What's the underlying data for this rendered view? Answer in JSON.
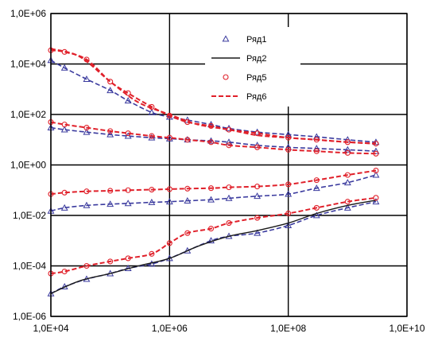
{
  "chart_data": {
    "type": "line",
    "scale": "log-log",
    "xlim": [
      10000,
      10000000000
    ],
    "ylim": [
      1e-06,
      1000000
    ],
    "x_ticks": [
      {
        "value": 10000,
        "label": "1,0E+04"
      },
      {
        "value": 1000000,
        "label": "1,0E+06"
      },
      {
        "value": 100000000,
        "label": "1,0E+08"
      },
      {
        "value": 10000000000,
        "label": "1,0E+10"
      }
    ],
    "y_ticks": [
      {
        "value": 1000000,
        "label": "1,0E+06"
      },
      {
        "value": 10000,
        "label": "1,0E+04"
      },
      {
        "value": 100,
        "label": "1,0E+02"
      },
      {
        "value": 1,
        "label": "1,0E+00"
      },
      {
        "value": 0.01,
        "label": "1,0E-02"
      },
      {
        "value": 0.0001,
        "label": "1,0E-04"
      },
      {
        "value": 1e-06,
        "label": "1,0E-06"
      }
    ],
    "grid": true,
    "legend_position": "top-right",
    "series": [
      {
        "name": "Ряд1",
        "style": "triangle-markers",
        "color": "#3a3a9e",
        "curves": [
          {
            "x": [
              10000,
              17000,
              40000,
              100000,
              200000,
              500000,
              1000000,
              2000000,
              5000000,
              10000000,
              30000000,
              100000000,
              300000000,
              1000000000,
              3000000000
            ],
            "y": [
              14000,
              7000,
              2500,
              900,
              350,
              120,
              80,
              60,
              40,
              28,
              20,
              16,
              13,
              10,
              8
            ]
          },
          {
            "x": [
              10000,
              17000,
              40000,
              100000,
              200000,
              500000,
              1000000,
              2000000,
              5000000,
              10000000,
              30000000,
              100000000,
              300000000,
              1000000000,
              3000000000
            ],
            "y": [
              30,
              25,
              20,
              16,
              14,
              12,
              11,
              10,
              9,
              8,
              6,
              5,
              4.5,
              4,
              3.5
            ]
          },
          {
            "x": [
              10000,
              17000,
              40000,
              100000,
              200000,
              500000,
              1000000,
              2000000,
              5000000,
              10000000,
              30000000,
              100000000,
              300000000,
              1000000000,
              3000000000
            ],
            "y": [
              0.015,
              0.02,
              0.025,
              0.028,
              0.03,
              0.033,
              0.035,
              0.038,
              0.042,
              0.048,
              0.058,
              0.07,
              0.12,
              0.2,
              0.4
            ]
          },
          {
            "x": [
              10000,
              17000,
              40000,
              100000,
              200000,
              500000,
              1000000,
              2000000,
              5000000,
              10000000,
              30000000,
              100000000,
              300000000,
              1000000000,
              3000000000
            ],
            "y": [
              8e-06,
              1.5e-05,
              3e-05,
              5e-05,
              8e-05,
              0.00012,
              0.0002,
              0.0004,
              0.001,
              0.0015,
              0.002,
              0.004,
              0.01,
              0.02,
              0.035
            ]
          }
        ]
      },
      {
        "name": "Ряд2",
        "style": "solid-line",
        "color": "#1a1a1a",
        "curves": [
          {
            "x": [
              10000,
              30000,
              100000,
              300000,
              1000000,
              3000000,
              10000000,
              30000000,
              100000000,
              300000000,
              1000000000,
              3000000000
            ],
            "y": [
              8e-06,
              2.5e-05,
              5e-05,
              0.0001,
              0.0002,
              0.0006,
              0.0015,
              0.0025,
              0.005,
              0.012,
              0.025,
              0.04
            ]
          }
        ]
      },
      {
        "name": "Ряд5",
        "style": "circle-markers",
        "color": "#e0202a",
        "curves": [
          {
            "x": [
              10000,
              17000,
              40000,
              100000,
              200000,
              500000,
              1000000,
              2000000,
              5000000,
              10000000,
              30000000,
              100000000,
              300000000,
              1000000000,
              3000000000
            ],
            "y": [
              35000,
              30000,
              15000,
              2000,
              700,
              200,
              90,
              50,
              35,
              25,
              18,
              12,
              10,
              8,
              7
            ]
          },
          {
            "x": [
              10000,
              17000,
              40000,
              100000,
              200000,
              500000,
              1000000,
              2000000,
              5000000,
              10000000,
              30000000,
              100000000,
              300000000,
              1000000000,
              3000000000
            ],
            "y": [
              50,
              40,
              30,
              22,
              18,
              14,
              12,
              10,
              8,
              6,
              5,
              4,
              3.5,
              3,
              2.8
            ]
          },
          {
            "x": [
              10000,
              17000,
              40000,
              100000,
              200000,
              500000,
              1000000,
              2000000,
              5000000,
              10000000,
              30000000,
              100000000,
              300000000,
              1000000000,
              3000000000
            ],
            "y": [
              0.07,
              0.08,
              0.09,
              0.095,
              0.1,
              0.105,
              0.11,
              0.115,
              0.12,
              0.13,
              0.14,
              0.17,
              0.25,
              0.4,
              0.6
            ]
          },
          {
            "x": [
              10000,
              17000,
              40000,
              100000,
              200000,
              500000,
              1000000,
              2000000,
              5000000,
              10000000,
              30000000,
              100000000,
              300000000,
              1000000000,
              3000000000
            ],
            "y": [
              5e-05,
              6e-05,
              0.0001,
              0.00015,
              0.0002,
              0.0003,
              0.0008,
              0.002,
              0.003,
              0.005,
              0.008,
              0.012,
              0.02,
              0.035,
              0.05
            ]
          }
        ]
      },
      {
        "name": "Ряд6",
        "style": "dashed-line",
        "color": "#e0202a",
        "curves": [
          {
            "x": [
              10000,
              30000,
              100000,
              300000,
              1000000,
              3000000,
              10000000,
              30000000,
              100000000,
              300000000,
              1000000000,
              3000000000
            ],
            "y": [
              40000,
              20000,
              2000,
              300,
              100,
              40,
              25,
              15,
              12,
              10,
              8,
              7
            ]
          }
        ]
      }
    ]
  }
}
